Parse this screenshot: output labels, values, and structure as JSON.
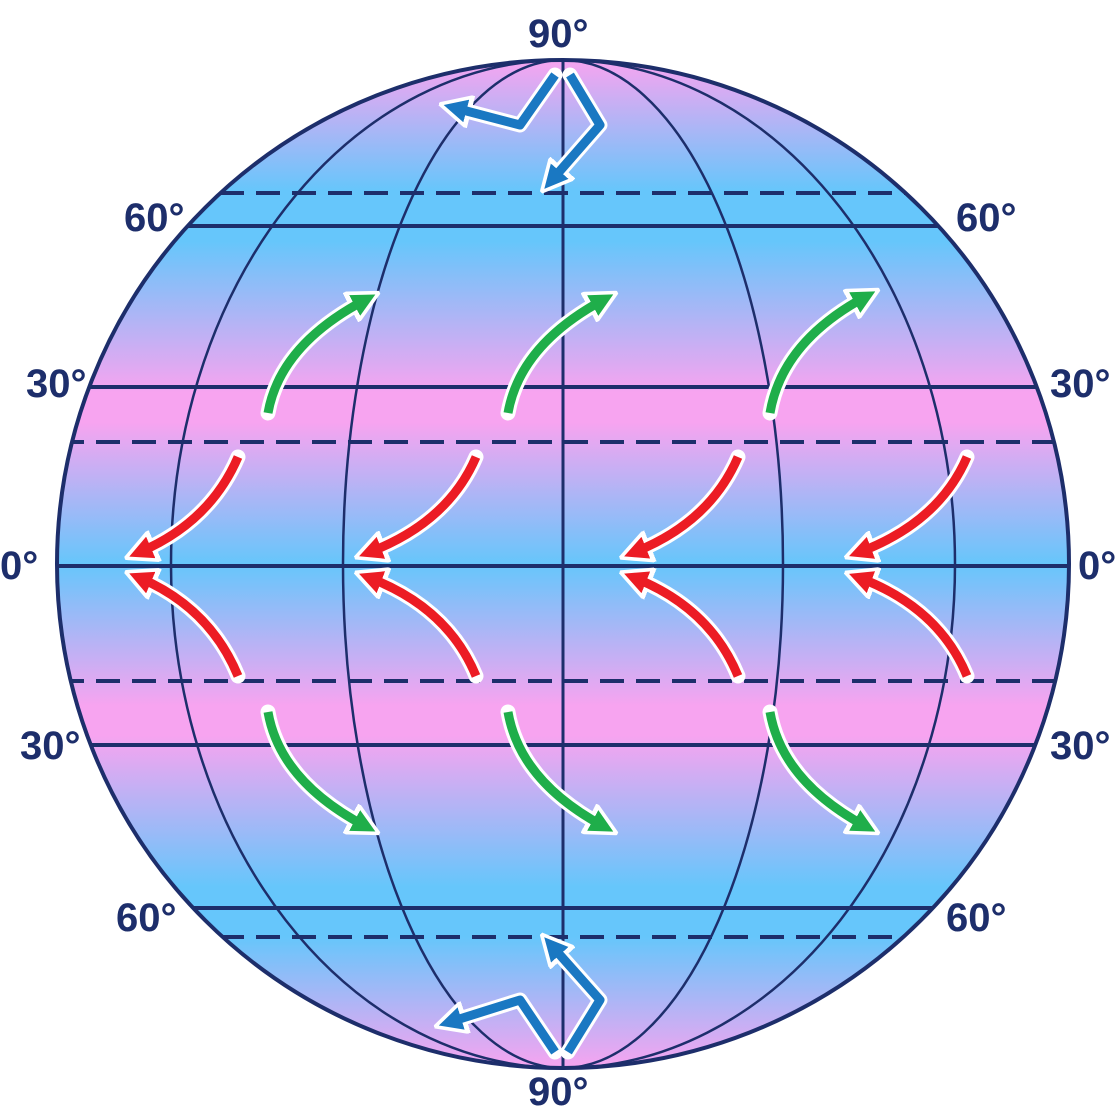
{
  "labels": {
    "pole_north": "90°",
    "pole_south": "90°",
    "lat_60_north_left": "60°",
    "lat_60_north_right": "60°",
    "lat_30_north_left": "30°",
    "lat_30_north_right": "30°",
    "equator_left": "0°",
    "equator_right": "0°",
    "lat_30_south_left": "30°",
    "lat_30_south_right": "30°",
    "lat_60_south_left": "60°",
    "lat_60_south_right": "60°"
  },
  "colors": {
    "outline": "#1d2e6b",
    "band_pink": "#f7a4f0",
    "band_blue": "#66c6fb",
    "polar_arrows": "#1a78c2",
    "westerly_arrows": "#1fae4a",
    "trade_wind_arrows": "#ec1c24",
    "arrow_halo": "#ffffff"
  }
}
